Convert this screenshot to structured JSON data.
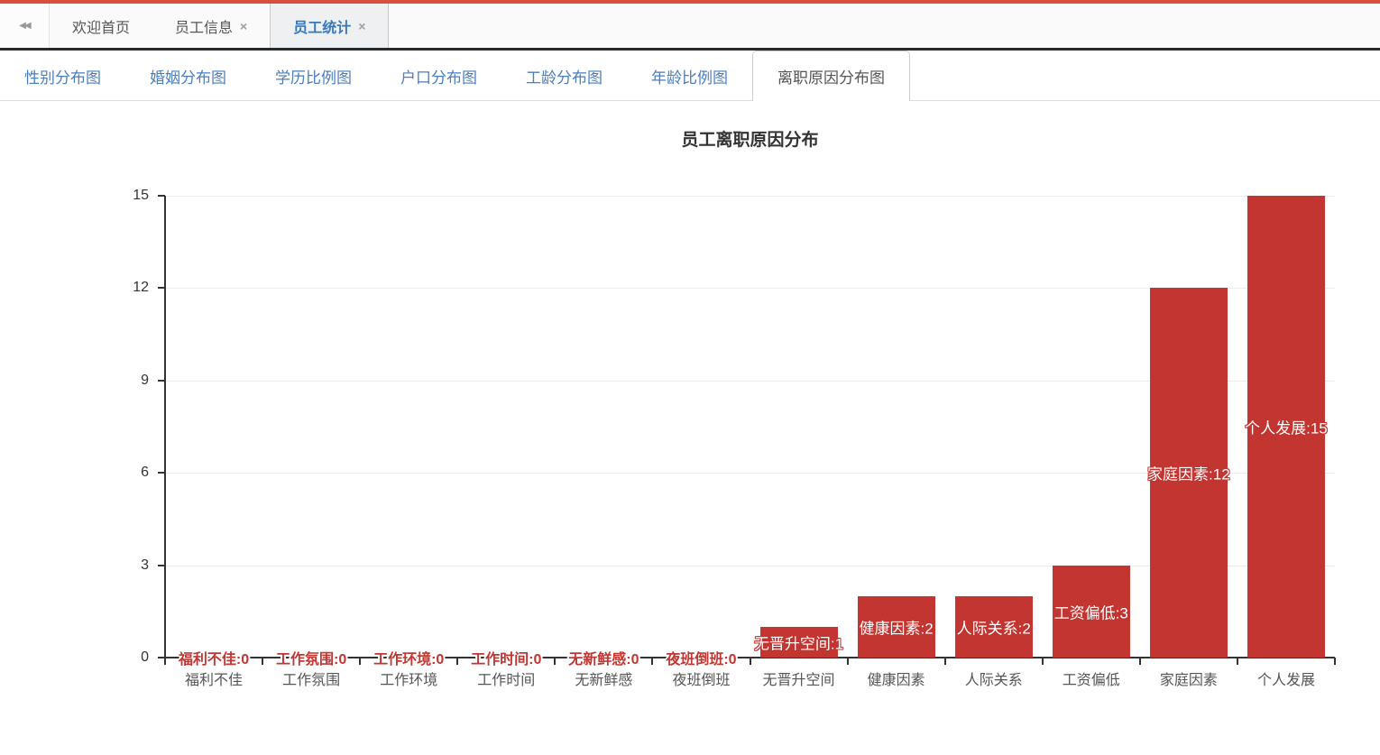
{
  "colors": {
    "accent_strip": "#d94f3d",
    "tabbar_border": "#232b31",
    "tab_active_text": "#3879bd",
    "subtab_text": "#4a7ebd",
    "bar": "#c23531"
  },
  "top_tabs": {
    "collapse_glyph": "◀◀",
    "close_glyph": "×",
    "items": [
      {
        "label": "欢迎首页",
        "closable": false,
        "active": false
      },
      {
        "label": "员工信息",
        "closable": true,
        "active": false
      },
      {
        "label": "员工统计",
        "closable": true,
        "active": true
      }
    ]
  },
  "chart_tabs": {
    "items": [
      {
        "label": "性别分布图",
        "active": false
      },
      {
        "label": "婚姻分布图",
        "active": false
      },
      {
        "label": "学历比例图",
        "active": false
      },
      {
        "label": "户口分布图",
        "active": false
      },
      {
        "label": "工龄分布图",
        "active": false
      },
      {
        "label": "年龄比例图",
        "active": false
      },
      {
        "label": "离职原因分布图",
        "active": true
      }
    ]
  },
  "chart_data": {
    "type": "bar",
    "title": "员工离职原因分布",
    "categories": [
      "福利不佳",
      "工作氛围",
      "工作环境",
      "工作时间",
      "无新鲜感",
      "夜班倒班",
      "无晋升空间",
      "健康因素",
      "人际关系",
      "工资偏低",
      "家庭因素",
      "个人发展"
    ],
    "values": [
      0,
      0,
      0,
      0,
      0,
      0,
      1,
      2,
      2,
      3,
      12,
      15
    ],
    "yticks": [
      0,
      3,
      6,
      9,
      12,
      15
    ],
    "ylim": [
      0,
      15
    ],
    "xlabel": "",
    "ylabel": "",
    "grid": true,
    "legend": "none",
    "bar_color": "#c23531",
    "label_format": "{category}:{value}"
  }
}
